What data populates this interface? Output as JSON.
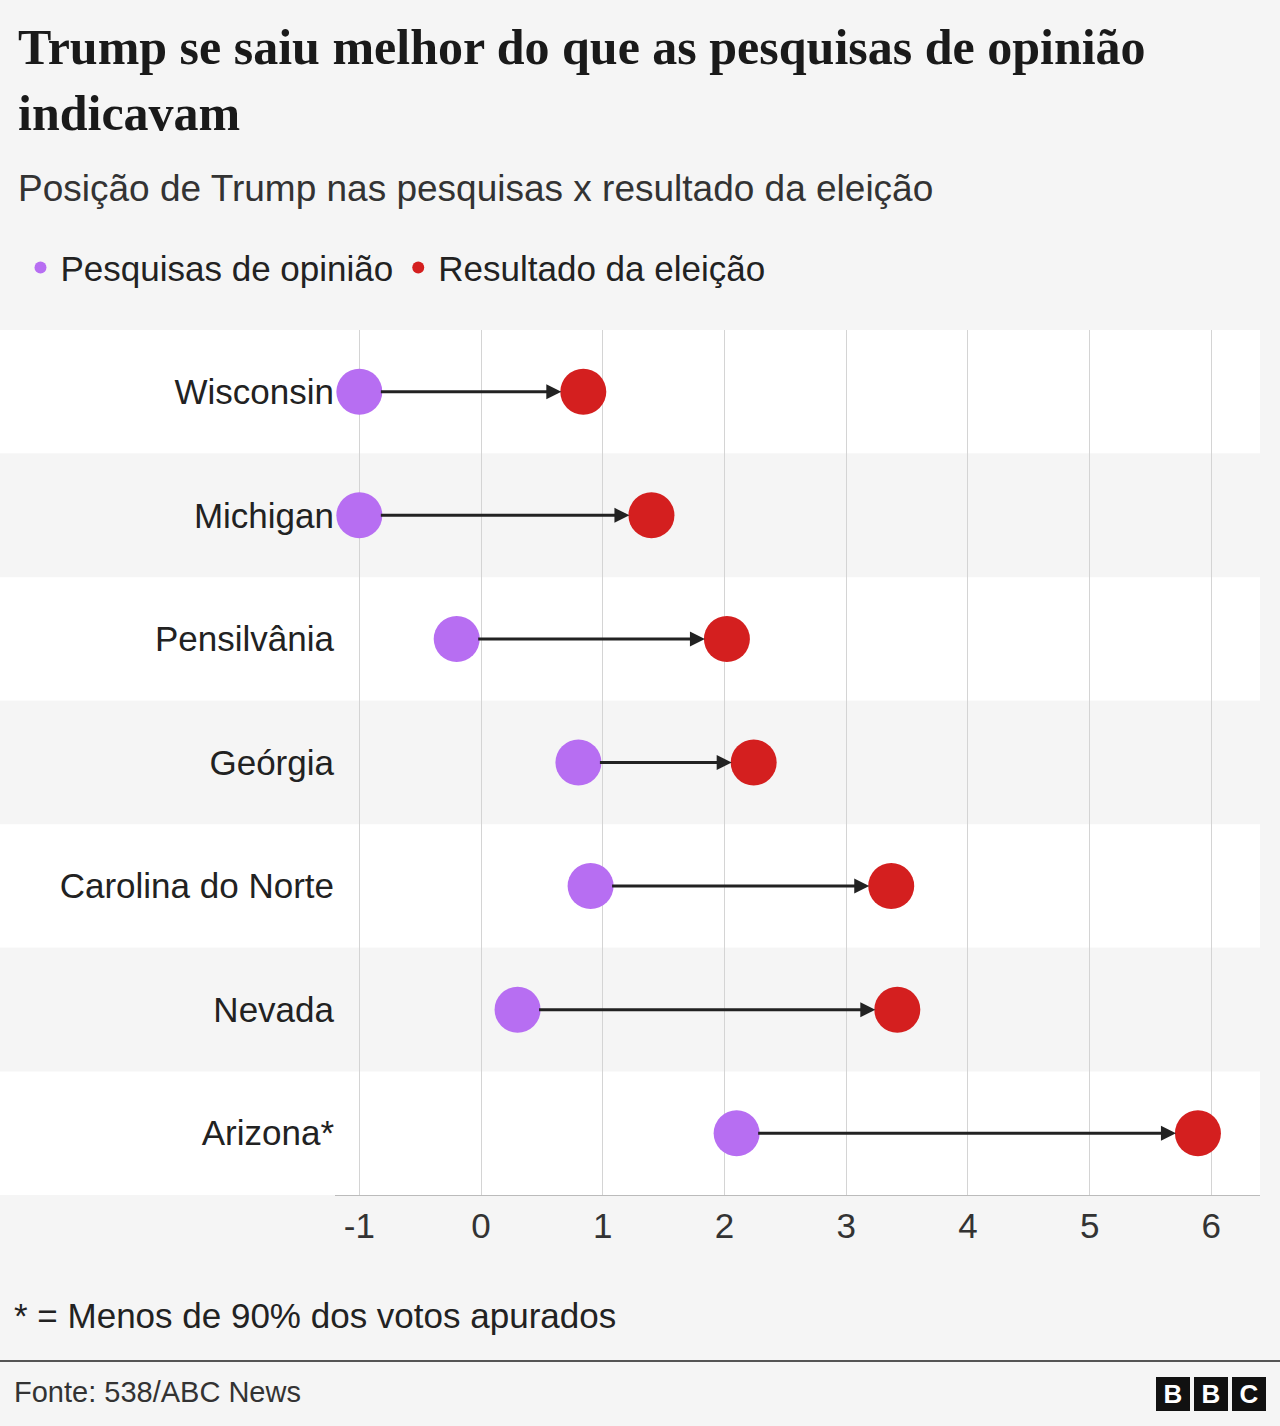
{
  "chart_data": {
    "type": "dumbbell",
    "title": "Trump se saiu melhor do que as pesquisas de opinião indicavam",
    "subtitle": "Posição de Trump nas pesquisas x resultado da eleição",
    "categories": [
      "Wisconsin",
      "Michigan",
      "Pensilvânia",
      "Geórgia",
      "Carolina do Norte",
      "Nevada",
      "Arizona*"
    ],
    "series": [
      {
        "name": "Pesquisas de opinião",
        "color": "#b76ef2",
        "values": [
          -1,
          -1,
          -0.2,
          0.8,
          0.9,
          0.3,
          2.1
        ]
      },
      {
        "name": "Resultado da eleição",
        "color": "#d41f1f",
        "values": [
          0.84,
          1.4,
          2.02,
          2.24,
          3.37,
          3.42,
          5.89
        ]
      }
    ],
    "orientation": "horizontal",
    "marker": "circle",
    "xlim": [
      -1.2,
      6.4
    ],
    "xticks": [
      -1,
      0,
      1,
      2,
      3,
      4,
      5,
      6
    ],
    "grid": true,
    "legend": "top left",
    "note": "* = Menos de 90% dos votos apurados",
    "source": "Fonte: 538/ABC News",
    "logo": "BBC"
  }
}
